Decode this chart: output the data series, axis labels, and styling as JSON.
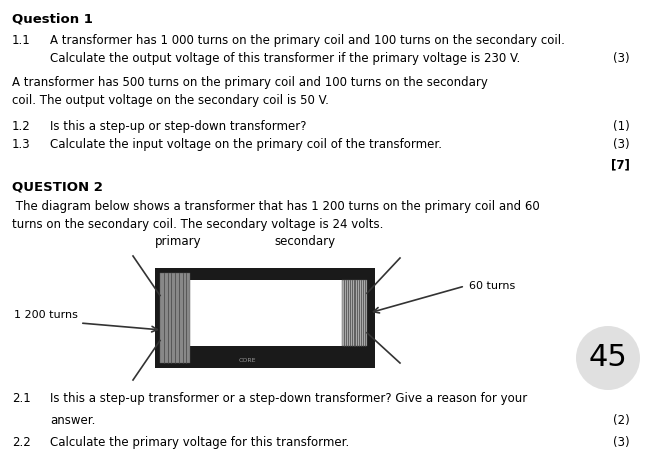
{
  "bg_color": "#ffffff",
  "text_color": "#000000",
  "title1": "Question 1",
  "q1_1_num": "1.1",
  "q1_1_text": "A transformer has 1 000 turns on the primary coil and 100 turns on the secondary coil.",
  "q1_1_text2": "Calculate the output voltage of this transformer if the primary voltage is 230 V.",
  "q1_1_marks": "(3)",
  "q1_context_line1": "A transformer has 500 turns on the primary coil and 100 turns on the secondary",
  "q1_context_line2": "coil. The output voltage on the secondary coil is 50 V.",
  "q1_2_num": "1.2",
  "q1_2_text": "Is this a step-up or step-down transformer?",
  "q1_2_marks": "(1)",
  "q1_3_num": "1.3",
  "q1_3_text": "Calculate the input voltage on the primary coil of the transformer.",
  "q1_3_marks": "(3)",
  "q1_total": "[7]",
  "title2": "QUESTION 2",
  "q2_context_line1": " The diagram below shows a transformer that has 1 200 turns on the primary coil and 60",
  "q2_context_line2": "turns on the secondary coil. The secondary voltage is 24 volts.",
  "q2_1_num": "2.1",
  "q2_1_text": "Is this a step-up transformer or a step-down transformer? Give a reason for your",
  "q2_1_text2": "answer.",
  "q2_1_marks": "(2)",
  "q2_2_num": "2.2",
  "q2_2_text": "Calculate the primary voltage for this transformer.",
  "q2_2_marks": "(3)",
  "page_number": "45",
  "core_color": "#1a1a1a",
  "inner_color": "#ffffff",
  "coil_color_primary": "#888888",
  "coil_color_secondary": "#aaaaaa",
  "core_label_color": "#999999",
  "wire_color": "#333333",
  "circle_color": "#e0e0e0"
}
